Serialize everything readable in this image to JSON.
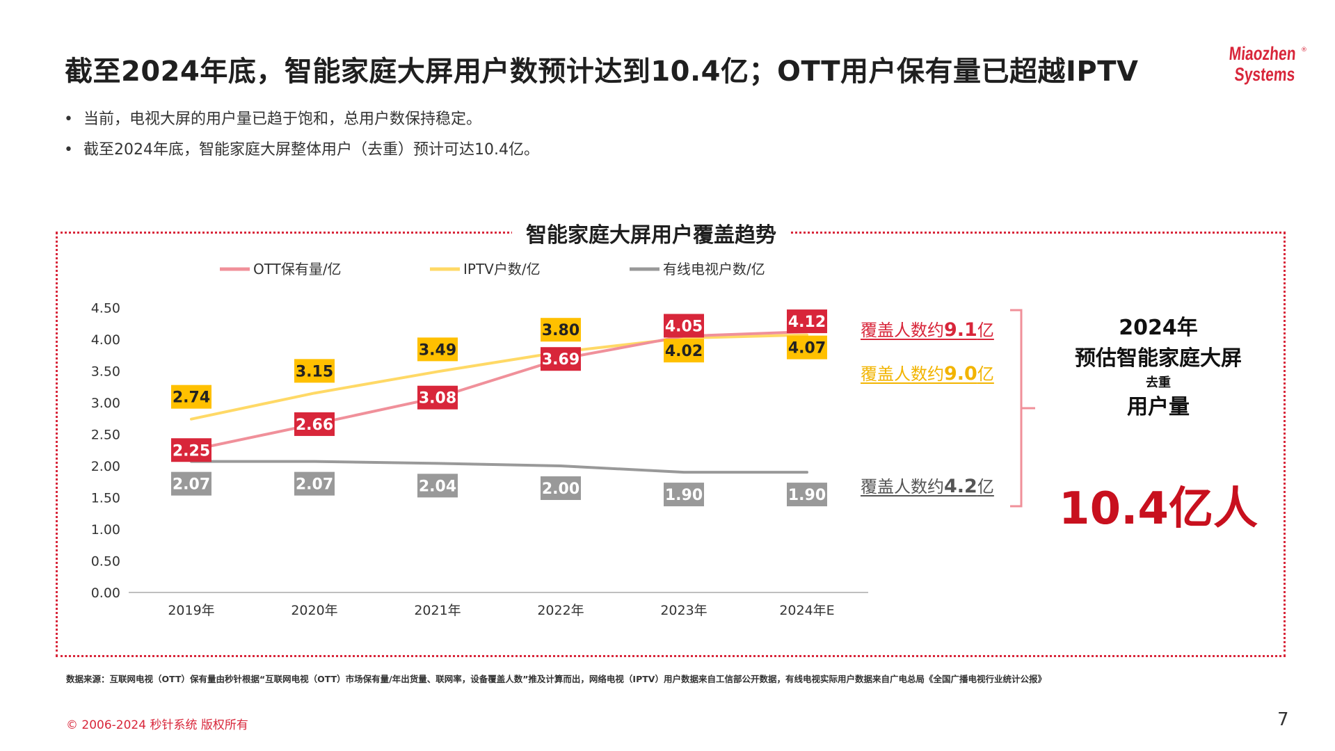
{
  "title": "截至2024年底，智能家庭大屏用户数预计达到10.4亿；OTT用户保有量已超越IPTV",
  "logo": {
    "line1": "Miaozhen",
    "line2": "Systems",
    "registered": "®"
  },
  "bullets": [
    "当前，电视大屏的用户量已趋于饱和，总用户数保持稳定。",
    "截至2024年底，智能家庭大屏整体用户（去重）预计可达10.4亿。"
  ],
  "bullet_symbol": "•",
  "chart_title": "智能家庭大屏用户覆盖趋势",
  "chart_data": {
    "type": "line",
    "title": "智能家庭大屏用户覆盖趋势",
    "categories": [
      "2019年",
      "2020年",
      "2021年",
      "2022年",
      "2023年",
      "2024年E"
    ],
    "series": [
      {
        "name": "OTT保有量/亿",
        "values": [
          2.25,
          2.66,
          3.08,
          3.69,
          4.05,
          4.12
        ],
        "color": "#f0909a",
        "label_color": "#d8263a",
        "label_pos": "center"
      },
      {
        "name": "IPTV户数/亿",
        "values": [
          2.74,
          3.15,
          3.49,
          3.8,
          4.02,
          4.07
        ],
        "color": "#ffd966",
        "label_color": "#ffc000",
        "label_pos": "above"
      },
      {
        "name": "有线电视户数/亿",
        "values": [
          2.07,
          2.07,
          2.04,
          2.0,
          1.9,
          1.9
        ],
        "color": "#999999",
        "label_color": "#999999",
        "label_pos": "below"
      }
    ],
    "y_ticks": [
      "0.00",
      "0.50",
      "1.00",
      "1.50",
      "2.00",
      "2.50",
      "3.00",
      "3.50",
      "4.00",
      "4.50"
    ],
    "ylim": [
      0,
      4.5
    ],
    "grid": false,
    "legend": "top"
  },
  "coverage": {
    "ott": {
      "prefix": "覆盖人数约",
      "value": "9.1",
      "suffix": "亿"
    },
    "iptv": {
      "prefix": "覆盖人数约",
      "value": "9.0",
      "suffix": "亿"
    },
    "cable": {
      "prefix": "覆盖人数约",
      "value": "4.2",
      "suffix": "亿"
    }
  },
  "summary": {
    "year": "2024年",
    "line2": "预估智能家庭大屏",
    "small": "去重",
    "line3": "用户量",
    "big_number": "10.4亿人"
  },
  "source": "数据来源：互联网电视（OTT）保有量由秒针根据“互联网电视（OTT）市场保有量/年出货量、联网率，设备覆盖人数”推及计算而出，网络电视（IPTV）用户数据来自工信部公开数据，有线电视实际用户数据来自广电总局《全国广播电视行业统计公报》",
  "copyright": "© 2006-2024 秒针系统 版权所有",
  "page_number": "7",
  "colors": {
    "accent": "#d8263a",
    "ott_label": "#d8263a",
    "iptv_label": "#ffc000",
    "cable_label": "#999999"
  }
}
